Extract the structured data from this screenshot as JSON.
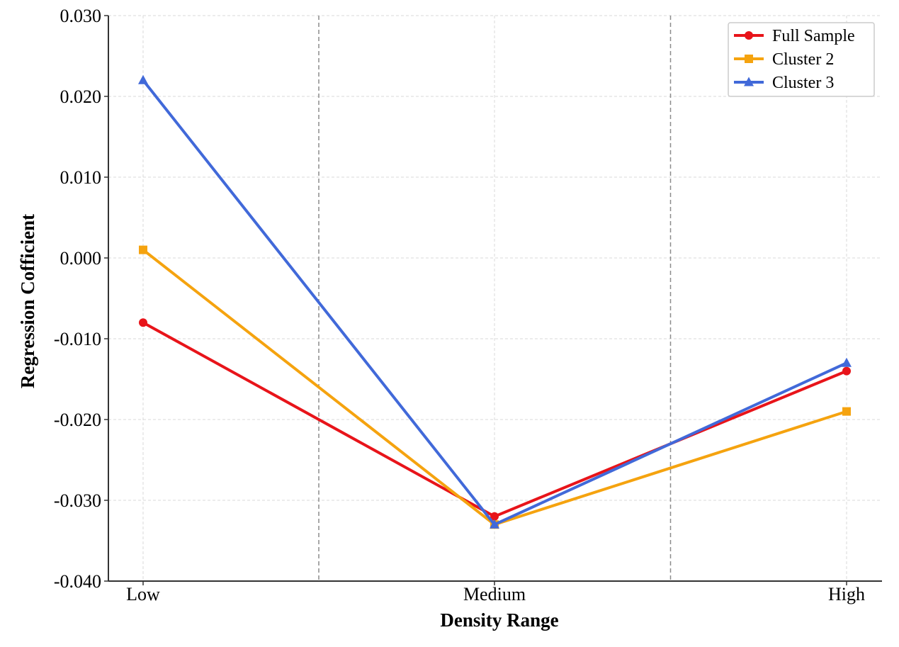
{
  "chart_data": {
    "type": "line",
    "categories": [
      "Low",
      "Medium",
      "High"
    ],
    "series": [
      {
        "name": "Full Sample",
        "values": [
          -0.008,
          -0.032,
          -0.014
        ],
        "color": "#e8141a",
        "marker": "circle"
      },
      {
        "name": "Cluster 2",
        "values": [
          0.001,
          -0.033,
          -0.019
        ],
        "color": "#f5a30f",
        "marker": "square"
      },
      {
        "name": "Cluster 3",
        "values": [
          0.022,
          -0.033,
          -0.013
        ],
        "color": "#4169d9",
        "marker": "triangle"
      }
    ],
    "xlabel": "Density Range",
    "ylabel": "Regression Cofficient",
    "ylim": [
      -0.04,
      0.03
    ],
    "yticks": [
      -0.04,
      -0.03,
      -0.02,
      -0.01,
      0.0,
      0.01,
      0.02,
      0.03
    ],
    "ytick_labels": [
      "-0.040",
      "-0.030",
      "-0.020",
      "-0.010",
      "0.000",
      "0.010",
      "0.020",
      "0.030"
    ],
    "category_separators": [
      "between Low and Medium",
      "between Medium and High"
    ],
    "grid": true,
    "legend_position": "top-right"
  }
}
